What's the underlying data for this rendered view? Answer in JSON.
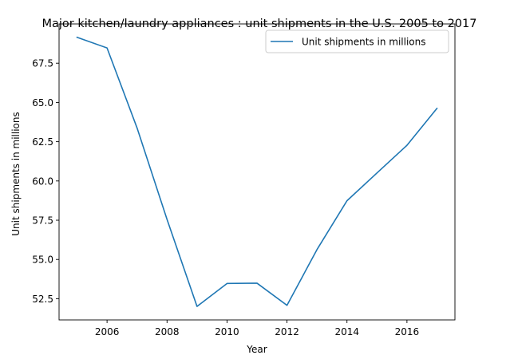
{
  "chart_data": {
    "type": "line",
    "title": "Major kitchen/laundry appliances : unit shipments in the U.S. 2005 to 2017",
    "xlabel": "Year",
    "ylabel": "Unit shipments in millions",
    "x": [
      2005,
      2006,
      2007,
      2008,
      2009,
      2010,
      2011,
      2012,
      2013,
      2014,
      2015,
      2016,
      2017
    ],
    "series": [
      {
        "name": "Unit shipments in millions",
        "color": "#1f77b4",
        "values": [
          69.15,
          68.47,
          63.38,
          57.55,
          52.01,
          53.47,
          53.49,
          52.08,
          55.63,
          58.74,
          60.51,
          62.27,
          64.62
        ]
      }
    ],
    "xlim": [
      2004.4,
      2017.6
    ],
    "ylim": [
      51.15,
      70.0
    ],
    "xticks": [
      2006,
      2008,
      2010,
      2012,
      2014,
      2016
    ],
    "xtick_labels": [
      "2006",
      "2008",
      "2010",
      "2012",
      "2014",
      "2016"
    ],
    "yticks": [
      52.5,
      55.0,
      57.5,
      60.0,
      62.5,
      65.0,
      67.5
    ],
    "ytick_labels": [
      "52.5",
      "55.0",
      "57.5",
      "60.0",
      "62.5",
      "65.0",
      "67.5"
    ],
    "grid": false,
    "legend_position": "upper right"
  }
}
